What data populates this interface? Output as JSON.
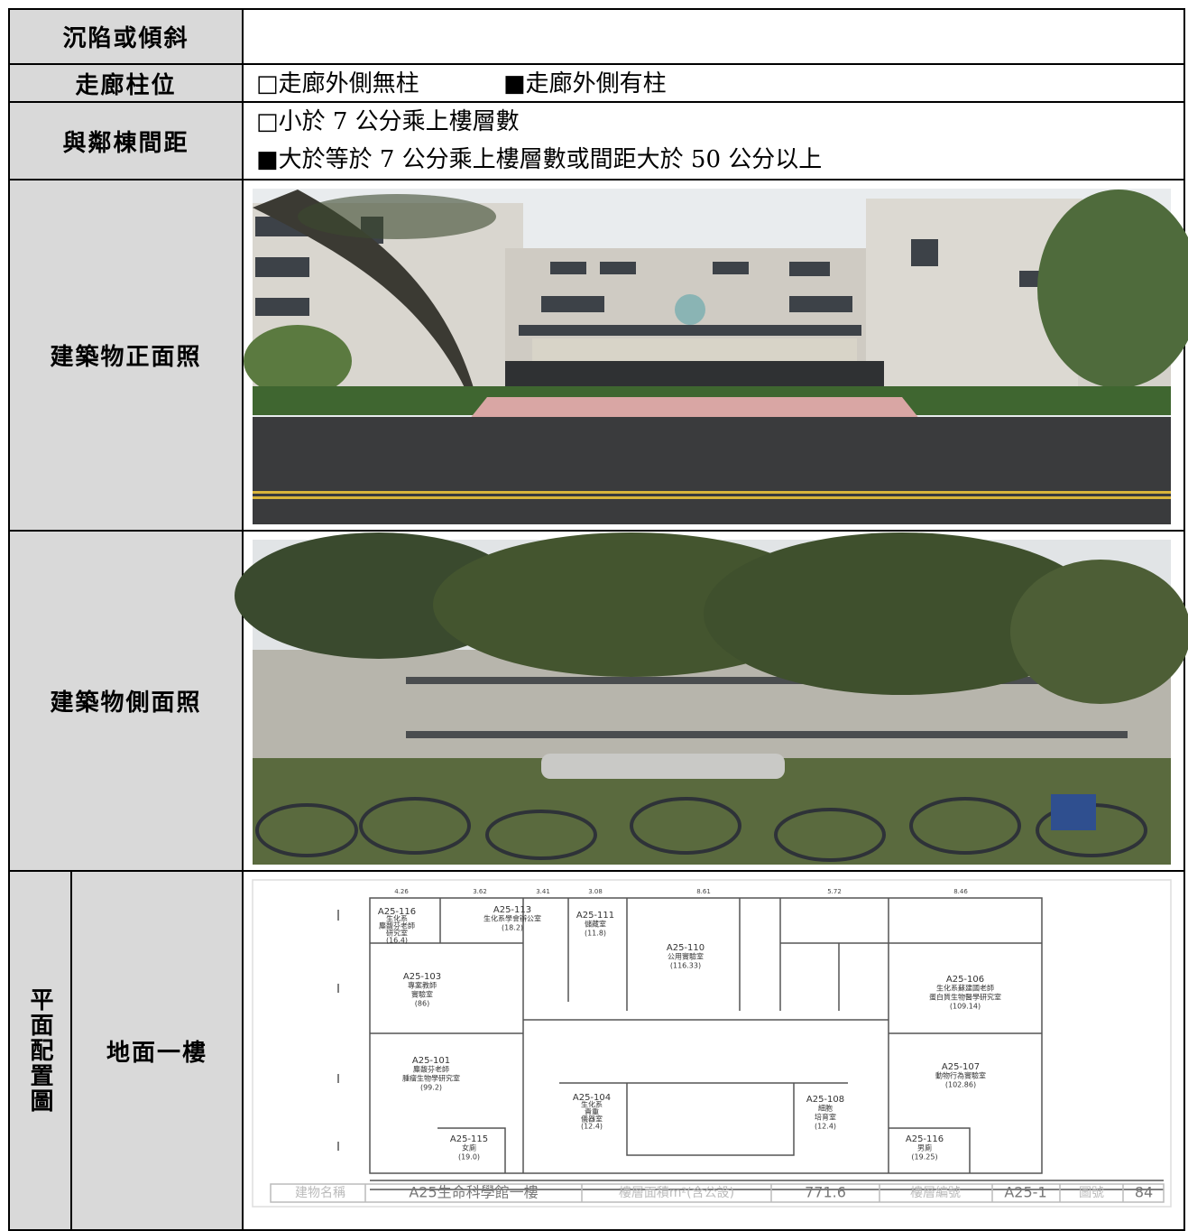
{
  "table": {
    "rows": [
      {
        "label": "沉陷或傾斜"
      },
      {
        "label": "走廊柱位",
        "options": [
          "□走廊外側無柱",
          "■走廊外側有柱"
        ]
      },
      {
        "label": "與鄰棟間距",
        "options": [
          "□小於 7 公分乘上樓層數",
          "■大於等於 7 公分乘上樓層數或間距大於 50 公分以上"
        ]
      },
      {
        "label": "建築物正面照"
      },
      {
        "label": "建築物側面照"
      },
      {
        "label": "平面配置圖",
        "sublabel": "地面一樓"
      }
    ]
  },
  "floor_plan": {
    "rooms": [
      {
        "lines": [
          "A25-116",
          "生化系",
          "麋馥芬老師",
          "研究室",
          "(16.4)"
        ]
      },
      {
        "lines": [
          "A25-113",
          "生化系學會辦公室",
          "(18.2)"
        ]
      },
      {
        "lines": [
          "A25-111",
          "儲藏室",
          "(11.8)"
        ]
      },
      {
        "lines": [
          "A25-110",
          "公用實驗室",
          "(116.33)"
        ]
      },
      {
        "lines": [
          "A25-103",
          "專案教師",
          "實驗室",
          "(86)"
        ]
      },
      {
        "lines": [
          "A25-106",
          "生化系蘇建國老師",
          "蛋白質生物醫學研究室",
          "(109.14)"
        ]
      },
      {
        "lines": [
          "A25-101",
          "麋馥芬老師",
          "腫瘤生物學研究室",
          "(99.2)"
        ]
      },
      {
        "lines": [
          "A25-107",
          "動物行為實驗室",
          "(102.86)"
        ]
      },
      {
        "lines": [
          "A25-104",
          "生化系",
          "貴重",
          "儀器室",
          "(12.4)"
        ]
      },
      {
        "lines": [
          "A25-108",
          "細胞",
          "培育室",
          "(12.4)"
        ]
      },
      {
        "lines": [
          "A25-115",
          "女廁",
          "(19.0)"
        ]
      },
      {
        "lines": [
          "A25-116",
          "男廁",
          "(19.25)"
        ]
      }
    ],
    "dimensions": [
      "4.26",
      "3.62",
      "3.41",
      "3.08",
      "8.61",
      "5.72",
      "8.46"
    ],
    "title_block": [
      "建物名稱",
      "A25生命科學館一樓",
      "樓層面積m²(含公設)",
      "771.6",
      "樓層編號",
      "A25-1",
      "圖號",
      "84"
    ]
  }
}
